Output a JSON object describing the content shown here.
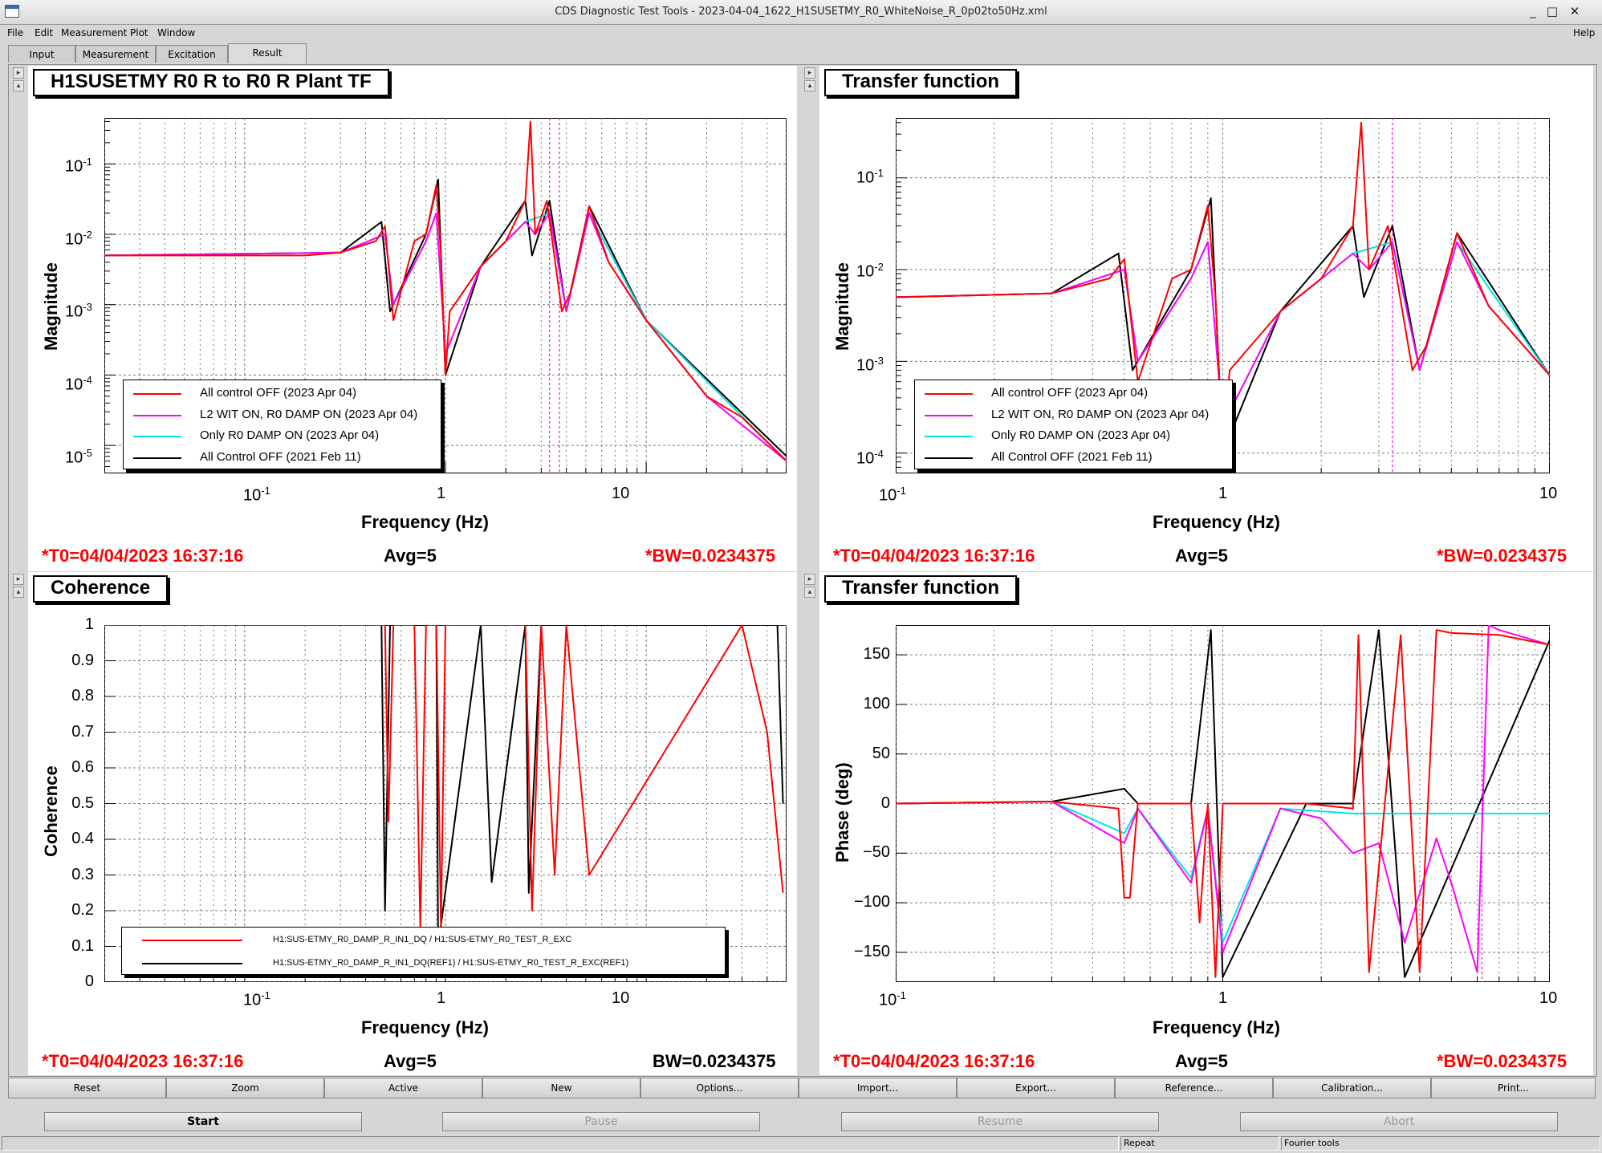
{
  "window": {
    "title": "CDS Diagnostic Test Tools - 2023-04-04_1622_H1SUSETMY_R0_WhiteNoise_R_0p02to50Hz.xml",
    "buttons": {
      "minimize": "_",
      "maximize": "□",
      "close": "✕"
    }
  },
  "menu": {
    "file": "File",
    "edit": "Edit",
    "measurement": "Measurement",
    "plot": "Plot",
    "window": "Window",
    "help": "Help"
  },
  "tabs": [
    "Input",
    "Measurement",
    "Excitation",
    "Result"
  ],
  "colors": {
    "red": "#ff0000",
    "magenta": "#ff00ff",
    "cyan": "#00e5e5",
    "black": "#000000"
  },
  "pads": {
    "tl": {
      "title": "H1SUSETMY R0 R to R0 R Plant TF",
      "ylabel": "Magnitude",
      "xlabel": "Frequency (Hz)",
      "yticks": [
        "10",
        "10",
        "10",
        "10",
        "10"
      ],
      "yexp": [
        "-1",
        "-2",
        "-3",
        "-4",
        "-5"
      ],
      "xticks": [
        "10",
        "1",
        "10"
      ],
      "xexp": [
        "-1"
      ],
      "t0": "*T0=04/04/2023 16:37:16",
      "avg": "Avg=5",
      "bw": "*BW=0.0234375",
      "legend": [
        "All control OFF (2023 Apr 04)",
        "L2 WIT ON, R0 DAMP ON (2023 Apr 04)",
        "Only R0 DAMP ON (2023 Apr 04)",
        "All Control OFF (2021 Feb 11)"
      ]
    },
    "tr": {
      "title": "Transfer function",
      "ylabel": "Magnitude",
      "xlabel": "Frequency (Hz)",
      "yticks": [
        "10",
        "10",
        "10",
        "10"
      ],
      "yexp": [
        "-1",
        "-2",
        "-3",
        "-4"
      ],
      "xticks": [
        "10",
        "1",
        "10"
      ],
      "xexp": [
        "-1"
      ],
      "t0": "*T0=04/04/2023 16:37:16",
      "avg": "Avg=5",
      "bw": "*BW=0.0234375",
      "legend": [
        "All control OFF (2023 Apr 04)",
        "L2 WIT ON, R0 DAMP ON (2023 Apr 04)",
        "Only R0 DAMP ON (2023 Apr 04)",
        "All Control OFF (2021 Feb 11)"
      ]
    },
    "bl": {
      "title": "Coherence",
      "ylabel": "Coherence",
      "xlabel": "Frequency (Hz)",
      "yticks": [
        "1",
        "0.9",
        "0.8",
        "0.7",
        "0.6",
        "0.5",
        "0.4",
        "0.3",
        "0.2",
        "0.1",
        "0"
      ],
      "xticks": [
        "10",
        "1",
        "10"
      ],
      "xexp": [
        "-1"
      ],
      "t0": "*T0=04/04/2023 16:37:16",
      "avg": "Avg=5",
      "bw": "BW=0.0234375",
      "legend": [
        "H1:SUS-ETMY_R0_DAMP_R_IN1_DQ / H1:SUS-ETMY_R0_TEST_R_EXC",
        "H1:SUS-ETMY_R0_DAMP_R_IN1_DQ(REF1) / H1:SUS-ETMY_R0_TEST_R_EXC(REF1)"
      ]
    },
    "br": {
      "title": "Transfer function",
      "ylabel": "Phase (deg)",
      "xlabel": "Frequency (Hz)",
      "yticks": [
        "150",
        "100",
        "50",
        "0",
        "−50",
        "−100",
        "−150"
      ],
      "xticks": [
        "10",
        "1",
        "10"
      ],
      "xexp": [
        "-1"
      ],
      "t0": "*T0=04/04/2023 16:37:16",
      "avg": "Avg=5",
      "bw": "*BW=0.0234375"
    }
  },
  "toolbar": [
    "Reset",
    "Zoom",
    "Active",
    "New",
    "Options...",
    "Import...",
    "Export...",
    "Reference...",
    "Calibration...",
    "Print..."
  ],
  "controls": {
    "start": "Start",
    "pause": "Pause",
    "resume": "Resume",
    "abort": "Abort"
  },
  "statusbar": {
    "repeat": "Repeat",
    "fourier": "Fourier tools"
  },
  "chart_data": [
    {
      "type": "line",
      "title": "H1SUSETMY R0 R to R0 R Plant TF",
      "xlabel": "Frequency (Hz)",
      "ylabel": "Magnitude",
      "xscale": "log",
      "yscale": "log",
      "xlim": [
        0.02,
        50
      ],
      "ylim": [
        4e-06,
        0.45
      ],
      "legend_position": "bottom-left",
      "series": [
        {
          "name": "All control OFF (2023 Apr 04)",
          "color": "#ff0000",
          "x": [
            0.02,
            0.1,
            0.2,
            0.3,
            0.45,
            0.5,
            0.55,
            0.7,
            0.8,
            0.9,
            0.95,
            1.0,
            1.05,
            1.5,
            2.0,
            2.5,
            2.65,
            2.8,
            3.2,
            3.8,
            4.2,
            5.2,
            6.5,
            10,
            20,
            30,
            50
          ],
          "y": [
            0.005,
            0.005,
            0.005,
            0.0055,
            0.008,
            0.013,
            0.0006,
            0.008,
            0.01,
            0.05,
            0.005,
            0.0001,
            0.0008,
            0.0035,
            0.008,
            0.03,
            0.4,
            0.01,
            0.03,
            0.0008,
            0.0015,
            0.025,
            0.004,
            0.0006,
            5e-05,
            2.5e-05,
            6e-06
          ]
        },
        {
          "name": "L2 WIT ON, R0 DAMP ON (2023 Apr 04)",
          "color": "#ff00ff",
          "x": [
            0.02,
            0.3,
            0.5,
            0.55,
            0.8,
            0.9,
            1.0,
            1.5,
            2.5,
            2.8,
            3.3,
            4.0,
            5.2,
            6.5,
            10,
            20,
            50
          ],
          "y": [
            0.005,
            0.0055,
            0.01,
            0.001,
            0.008,
            0.02,
            0.0002,
            0.0035,
            0.015,
            0.01,
            0.02,
            0.0008,
            0.02,
            0.004,
            0.0006,
            5e-05,
            6e-06
          ]
        },
        {
          "name": "Only R0 DAMP ON (2023 Apr 04)",
          "color": "#00e5e5",
          "x": [
            0.02,
            0.3,
            0.5,
            0.55,
            0.8,
            0.9,
            1.0,
            1.5,
            2.5,
            3.3,
            4.0,
            5.2,
            10,
            50
          ],
          "y": [
            0.005,
            0.0055,
            0.01,
            0.001,
            0.008,
            0.02,
            0.0002,
            0.0035,
            0.015,
            0.02,
            0.0008,
            0.02,
            0.0006,
            6e-06
          ]
        },
        {
          "name": "All Control OFF (2021 Feb 11)",
          "color": "#000000",
          "x": [
            0.02,
            0.3,
            0.48,
            0.53,
            0.8,
            0.92,
            1.0,
            1.5,
            2.5,
            2.7,
            3.3,
            4.0,
            5.2,
            10,
            50
          ],
          "y": [
            0.005,
            0.0055,
            0.015,
            0.0008,
            0.01,
            0.06,
            0.0001,
            0.0035,
            0.03,
            0.005,
            0.03,
            0.0008,
            0.025,
            0.0006,
            7e-06
          ]
        }
      ]
    },
    {
      "type": "line",
      "title": "Transfer function",
      "xlabel": "Frequency (Hz)",
      "ylabel": "Magnitude",
      "xscale": "log",
      "yscale": "log",
      "xlim": [
        0.1,
        10
      ],
      "ylim": [
        6e-05,
        0.45
      ],
      "legend_position": "bottom-left",
      "series": [
        {
          "name": "All control OFF (2023 Apr 04)",
          "color": "#ff0000",
          "x": [
            0.1,
            0.3,
            0.45,
            0.5,
            0.55,
            0.7,
            0.8,
            0.9,
            0.95,
            1.0,
            1.05,
            1.5,
            2.0,
            2.5,
            2.65,
            2.8,
            3.2,
            3.8,
            4.2,
            5.2,
            6.5,
            10
          ],
          "y": [
            0.005,
            0.0055,
            0.008,
            0.013,
            0.0006,
            0.008,
            0.01,
            0.05,
            0.005,
            0.0001,
            0.0008,
            0.0035,
            0.008,
            0.03,
            0.4,
            0.01,
            0.03,
            0.0008,
            0.0015,
            0.025,
            0.004,
            0.0007
          ]
        },
        {
          "name": "L2 WIT ON, R0 DAMP ON (2023 Apr 04)",
          "color": "#ff00ff",
          "x": [
            0.1,
            0.3,
            0.5,
            0.55,
            0.8,
            0.9,
            1.0,
            1.5,
            2.5,
            2.8,
            3.3,
            4.0,
            5.2,
            6.5,
            10
          ],
          "y": [
            0.005,
            0.0055,
            0.01,
            0.001,
            0.008,
            0.02,
            0.0002,
            0.0035,
            0.015,
            0.01,
            0.02,
            0.0008,
            0.02,
            0.004,
            0.0007
          ]
        },
        {
          "name": "Only R0 DAMP ON (2023 Apr 04)",
          "color": "#00e5e5",
          "x": [
            0.1,
            0.3,
            0.5,
            0.55,
            0.8,
            0.9,
            1.0,
            1.5,
            2.5,
            3.3,
            4.0,
            5.2,
            10
          ],
          "y": [
            0.005,
            0.0055,
            0.01,
            0.001,
            0.008,
            0.02,
            0.0002,
            0.0035,
            0.015,
            0.02,
            0.0008,
            0.02,
            0.0007
          ]
        },
        {
          "name": "All Control OFF (2021 Feb 11)",
          "color": "#000000",
          "x": [
            0.1,
            0.3,
            0.48,
            0.53,
            0.8,
            0.92,
            1.0,
            1.5,
            2.5,
            2.7,
            3.3,
            4.0,
            5.2,
            10
          ],
          "y": [
            0.005,
            0.0055,
            0.015,
            0.0008,
            0.01,
            0.06,
            0.0001,
            0.0035,
            0.03,
            0.005,
            0.03,
            0.0008,
            0.025,
            0.0007
          ]
        }
      ]
    },
    {
      "type": "line",
      "title": "Coherence",
      "xlabel": "Frequency (Hz)",
      "ylabel": "Coherence",
      "xscale": "log",
      "xlim": [
        0.02,
        50
      ],
      "ylim": [
        0,
        1
      ],
      "legend_position": "bottom",
      "series": [
        {
          "name": "H1:SUS-ETMY_R0_DAMP_R_IN1_DQ / H1:SUS-ETMY_R0_TEST_R_EXC",
          "color": "#ff0000",
          "x": [
            0.02,
            0.5,
            0.52,
            0.55,
            0.7,
            0.75,
            0.8,
            0.9,
            0.95,
            1.0,
            1.5,
            2.5,
            2.7,
            3.0,
            3.5,
            4.0,
            5.2,
            30,
            40,
            48
          ],
          "y": [
            1,
            1,
            0.45,
            1,
            1,
            0.15,
            1,
            1,
            0.15,
            1,
            1,
            1,
            0.2,
            1,
            0.3,
            1,
            0.3,
            1,
            0.7,
            0.25
          ]
        },
        {
          "name": "H1:SUS-ETMY_R0_DAMP_R_IN1_DQ(REF1) / H1:SUS-ETMY_R0_TEST_R_EXC(REF1)",
          "color": "#000000",
          "x": [
            0.02,
            0.48,
            0.5,
            0.53,
            0.9,
            0.92,
            1.5,
            1.7,
            2.5,
            2.6,
            3.0,
            45,
            48
          ],
          "y": [
            1,
            1,
            0.2,
            1,
            1,
            0.1,
            1,
            0.28,
            1,
            0.25,
            1,
            1,
            0.5
          ]
        }
      ]
    },
    {
      "type": "line",
      "title": "Transfer function",
      "xlabel": "Frequency (Hz)",
      "ylabel": "Phase (deg)",
      "xscale": "log",
      "xlim": [
        0.1,
        10
      ],
      "ylim": [
        -180,
        180
      ],
      "series": [
        {
          "name": "red",
          "color": "#ff0000",
          "x": [
            0.1,
            0.3,
            0.48,
            0.5,
            0.52,
            0.55,
            0.8,
            0.85,
            0.9,
            0.95,
            1.0,
            1.8,
            2.5,
            2.6,
            2.8,
            3.5,
            4.0,
            4.5,
            5.0,
            7,
            10
          ],
          "y": [
            0,
            2,
            -5,
            -95,
            -95,
            0,
            0,
            -120,
            0,
            -175,
            0,
            0,
            -5,
            170,
            -170,
            170,
            -170,
            175,
            172,
            170,
            160
          ]
        },
        {
          "name": "magenta",
          "color": "#ff00ff",
          "x": [
            0.1,
            0.3,
            0.5,
            0.55,
            0.8,
            0.9,
            1.0,
            1.5,
            2.0,
            2.5,
            3.0,
            3.6,
            4.5,
            5.0,
            6.0,
            6.5,
            7,
            10
          ],
          "y": [
            0,
            2,
            -40,
            -5,
            -80,
            -5,
            -150,
            -5,
            -15,
            -50,
            -40,
            -140,
            -35,
            -80,
            -170,
            180,
            175,
            160
          ]
        },
        {
          "name": "cyan",
          "color": "#00e5e5",
          "x": [
            0.1,
            0.3,
            0.5,
            0.55,
            0.8,
            0.9,
            1.0,
            1.5,
            2.5,
            10
          ],
          "y": [
            0,
            2,
            -30,
            -5,
            -75,
            -5,
            -140,
            -5,
            -10,
            -10
          ]
        },
        {
          "name": "black",
          "color": "#000000",
          "x": [
            0.1,
            0.3,
            0.5,
            0.55,
            0.8,
            0.92,
            1.0,
            1.8,
            2.5,
            3.0,
            3.6,
            10
          ],
          "y": [
            0,
            2,
            15,
            0,
            0,
            175,
            -175,
            0,
            0,
            175,
            -175,
            165
          ]
        }
      ]
    }
  ]
}
